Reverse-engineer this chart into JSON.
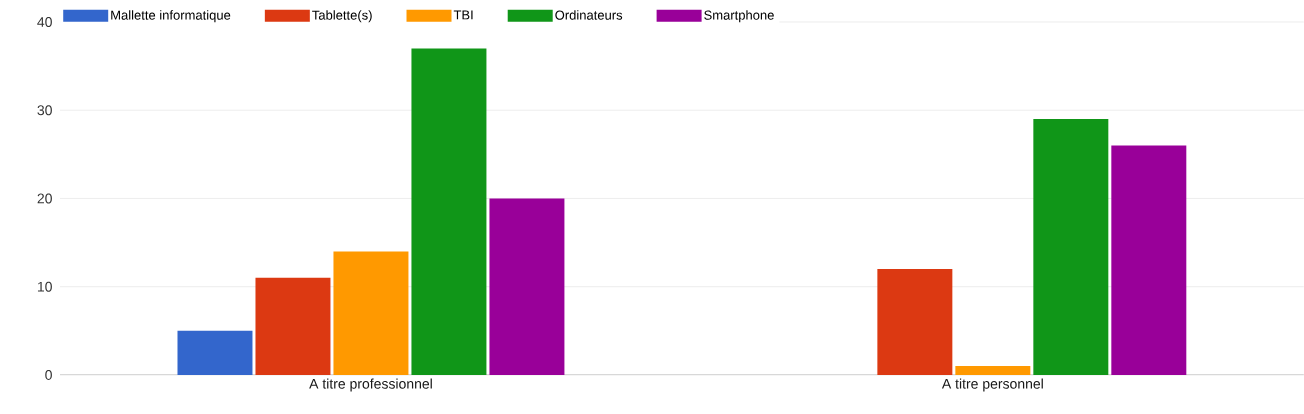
{
  "chart_data": {
    "type": "bar",
    "categories": [
      "A titre professionnel",
      "A titre personnel"
    ],
    "series": [
      {
        "name": "Mallette informatique",
        "color": "#3366cc",
        "values": [
          5,
          0
        ]
      },
      {
        "name": "Tablette(s)",
        "color": "#dc3912",
        "values": [
          11,
          12
        ]
      },
      {
        "name": "TBI",
        "color": "#ff9900",
        "values": [
          14,
          1
        ]
      },
      {
        "name": "Ordinateurs",
        "color": "#109618",
        "values": [
          37,
          29
        ]
      },
      {
        "name": "Smartphone",
        "color": "#990099",
        "values": [
          20,
          26
        ]
      }
    ],
    "ylim": [
      0,
      40
    ],
    "yticks": [
      0,
      10,
      20,
      30,
      40
    ],
    "grid": "y",
    "legend": "top"
  }
}
